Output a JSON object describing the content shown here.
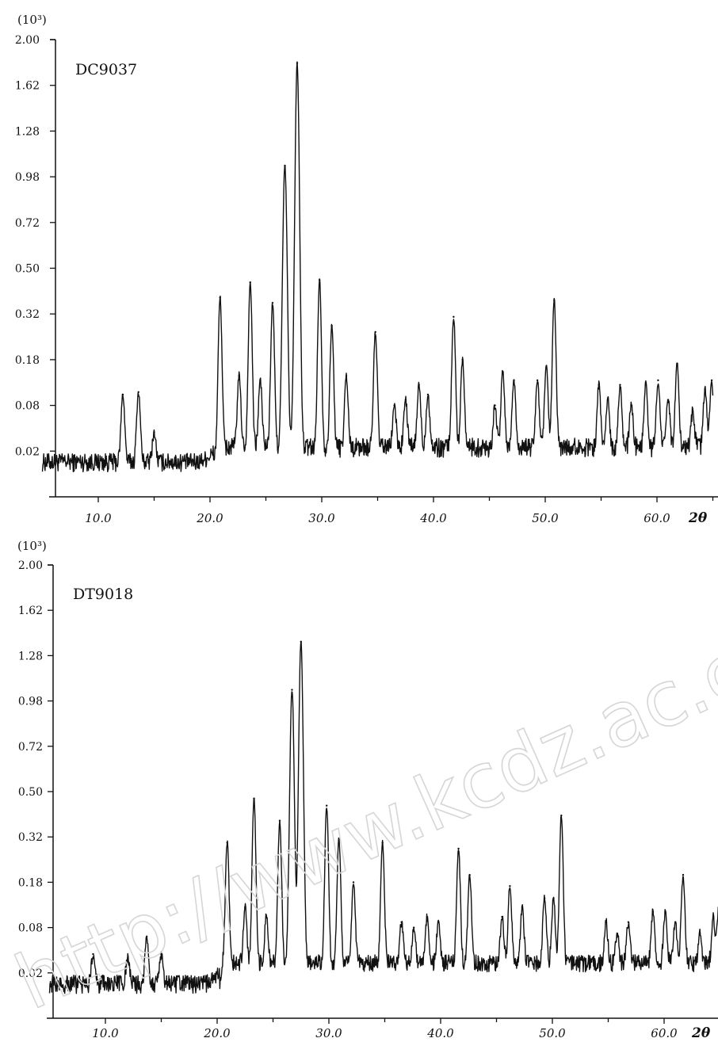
{
  "chart_data": [
    {
      "type": "line",
      "sample": "DC9037",
      "y_unit": "(10³)",
      "xlabel": "2θ",
      "x_ticks": [
        10,
        20,
        30,
        40,
        50,
        60
      ],
      "x_tick_labels": [
        "10.0",
        "20.0",
        "30.0",
        "40.0",
        "50.0",
        "60.0"
      ],
      "xlim": [
        5,
        65
      ],
      "y_tick_labels": [
        "0.02",
        "0.08",
        "0.18",
        "0.32",
        "0.50",
        "0.72",
        "0.98",
        "1.28",
        "1.62",
        "2.00"
      ],
      "y_scale": "square-root",
      "ylim": [
        0,
        2.0
      ],
      "grid": false,
      "peaks": [
        {
          "x": 12.2,
          "y": 0.1
        },
        {
          "x": 13.6,
          "y": 0.105
        },
        {
          "x": 15.0,
          "y": 0.04
        },
        {
          "x": 20.9,
          "y": 0.38
        },
        {
          "x": 22.6,
          "y": 0.14
        },
        {
          "x": 23.6,
          "y": 0.44
        },
        {
          "x": 24.5,
          "y": 0.13
        },
        {
          "x": 25.6,
          "y": 0.36
        },
        {
          "x": 26.7,
          "y": 1.05
        },
        {
          "x": 27.8,
          "y": 1.8
        },
        {
          "x": 29.8,
          "y": 0.45
        },
        {
          "x": 30.9,
          "y": 0.28
        },
        {
          "x": 32.2,
          "y": 0.14
        },
        {
          "x": 34.8,
          "y": 0.26
        },
        {
          "x": 36.5,
          "y": 0.08
        },
        {
          "x": 37.5,
          "y": 0.09
        },
        {
          "x": 38.7,
          "y": 0.12
        },
        {
          "x": 39.5,
          "y": 0.1
        },
        {
          "x": 41.8,
          "y": 0.31
        },
        {
          "x": 42.6,
          "y": 0.18
        },
        {
          "x": 45.5,
          "y": 0.08
        },
        {
          "x": 46.2,
          "y": 0.15
        },
        {
          "x": 47.2,
          "y": 0.13
        },
        {
          "x": 49.3,
          "y": 0.13
        },
        {
          "x": 50.1,
          "y": 0.16
        },
        {
          "x": 50.8,
          "y": 0.37
        },
        {
          "x": 54.8,
          "y": 0.12
        },
        {
          "x": 55.6,
          "y": 0.09
        },
        {
          "x": 56.7,
          "y": 0.12
        },
        {
          "x": 57.7,
          "y": 0.08
        },
        {
          "x": 59.0,
          "y": 0.12
        },
        {
          "x": 60.1,
          "y": 0.13
        },
        {
          "x": 61.0,
          "y": 0.09
        },
        {
          "x": 61.8,
          "y": 0.17
        },
        {
          "x": 63.2,
          "y": 0.07
        },
        {
          "x": 64.3,
          "y": 0.11
        },
        {
          "x": 64.9,
          "y": 0.13
        }
      ]
    },
    {
      "type": "line",
      "sample": "DT9018",
      "y_unit": "(10³)",
      "xlabel": "2θ",
      "x_ticks": [
        10,
        20,
        30,
        40,
        50,
        60
      ],
      "x_tick_labels": [
        "10.0",
        "20.0",
        "30.0",
        "40.0",
        "50.0",
        "60.0"
      ],
      "xlim": [
        5,
        65
      ],
      "y_tick_labels": [
        "0.02",
        "0.08",
        "0.18",
        "0.32",
        "0.50",
        "0.72",
        "0.98",
        "1.28",
        "1.62",
        "2.00"
      ],
      "y_scale": "square-root",
      "ylim": [
        0,
        2.0
      ],
      "grid": false,
      "peaks": [
        {
          "x": 8.9,
          "y": 0.04
        },
        {
          "x": 12.0,
          "y": 0.035
        },
        {
          "x": 13.7,
          "y": 0.065
        },
        {
          "x": 15.0,
          "y": 0.04
        },
        {
          "x": 20.9,
          "y": 0.3
        },
        {
          "x": 22.5,
          "y": 0.12
        },
        {
          "x": 23.3,
          "y": 0.47
        },
        {
          "x": 24.4,
          "y": 0.1
        },
        {
          "x": 25.6,
          "y": 0.38
        },
        {
          "x": 26.7,
          "y": 1.05
        },
        {
          "x": 27.5,
          "y": 1.38
        },
        {
          "x": 29.8,
          "y": 0.44
        },
        {
          "x": 30.9,
          "y": 0.31
        },
        {
          "x": 32.2,
          "y": 0.18
        },
        {
          "x": 34.8,
          "y": 0.3
        },
        {
          "x": 36.5,
          "y": 0.09
        },
        {
          "x": 37.6,
          "y": 0.08
        },
        {
          "x": 38.8,
          "y": 0.1
        },
        {
          "x": 39.8,
          "y": 0.09
        },
        {
          "x": 41.6,
          "y": 0.28
        },
        {
          "x": 42.6,
          "y": 0.2
        },
        {
          "x": 45.5,
          "y": 0.1
        },
        {
          "x": 46.2,
          "y": 0.17
        },
        {
          "x": 47.3,
          "y": 0.12
        },
        {
          "x": 49.3,
          "y": 0.14
        },
        {
          "x": 50.1,
          "y": 0.14
        },
        {
          "x": 50.8,
          "y": 0.4
        },
        {
          "x": 54.8,
          "y": 0.09
        },
        {
          "x": 55.8,
          "y": 0.07
        },
        {
          "x": 56.8,
          "y": 0.09
        },
        {
          "x": 59.0,
          "y": 0.11
        },
        {
          "x": 60.1,
          "y": 0.11
        },
        {
          "x": 61.0,
          "y": 0.09
        },
        {
          "x": 61.7,
          "y": 0.2
        },
        {
          "x": 63.2,
          "y": 0.07
        },
        {
          "x": 64.4,
          "y": 0.1
        },
        {
          "x": 64.9,
          "y": 0.12
        }
      ]
    }
  ],
  "watermark": "http://www.kcdz.ac.cn"
}
